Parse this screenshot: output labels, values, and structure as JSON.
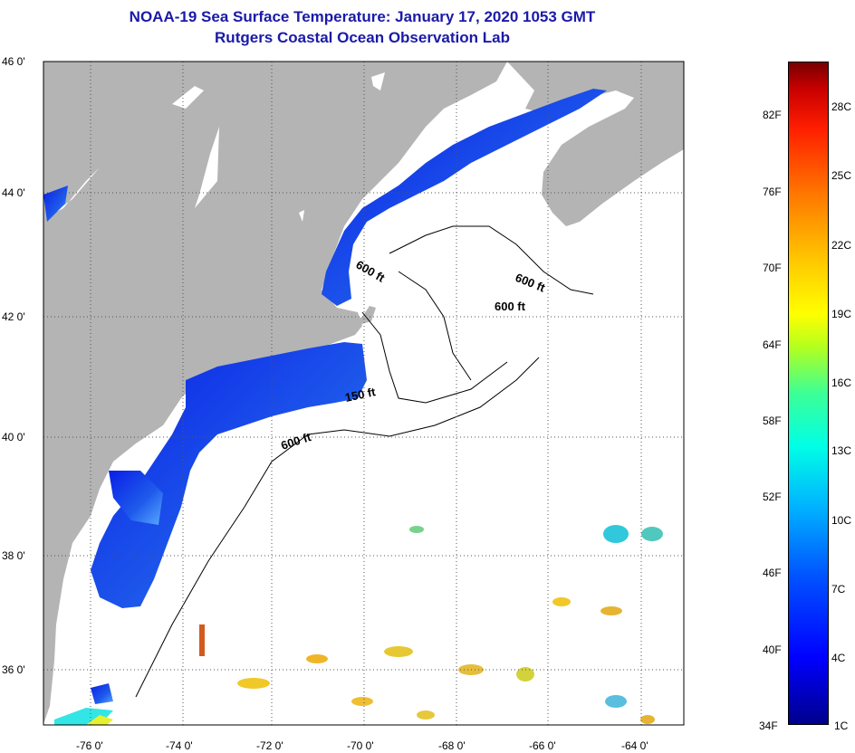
{
  "header": {
    "title": "NOAA-19 Sea Surface Temperature:  January 17, 2020 1053 GMT",
    "subtitle": "Rutgers Coastal Ocean Observation Lab"
  },
  "map": {
    "lat_labels": [
      "46 0'",
      "44 0'",
      "42 0'",
      "40 0'",
      "38 0'",
      "36 0'"
    ],
    "lon_labels": [
      "-76 0'",
      "-74 0'",
      "-72 0'",
      "-70 0'",
      "-68 0'",
      "-66 0'",
      "-64 0'"
    ],
    "contour_labels": [
      "600 ft",
      "600 ft",
      "600 ft",
      "150 ft",
      "600 ft"
    ],
    "colors": {
      "land": "#b4b4b4",
      "ocean_cloud": "#ffffff",
      "cold_water": "#1e50e6",
      "grid": "#000000"
    }
  },
  "colorbar": {
    "fahrenheit_labels": [
      "82F",
      "76F",
      "70F",
      "64F",
      "58F",
      "52F",
      "46F",
      "40F",
      "34F"
    ],
    "celsius_labels": [
      "28C",
      "25C",
      "22C",
      "19C",
      "16C",
      "13C",
      "10C",
      "7C",
      "4C",
      "1C"
    ]
  }
}
